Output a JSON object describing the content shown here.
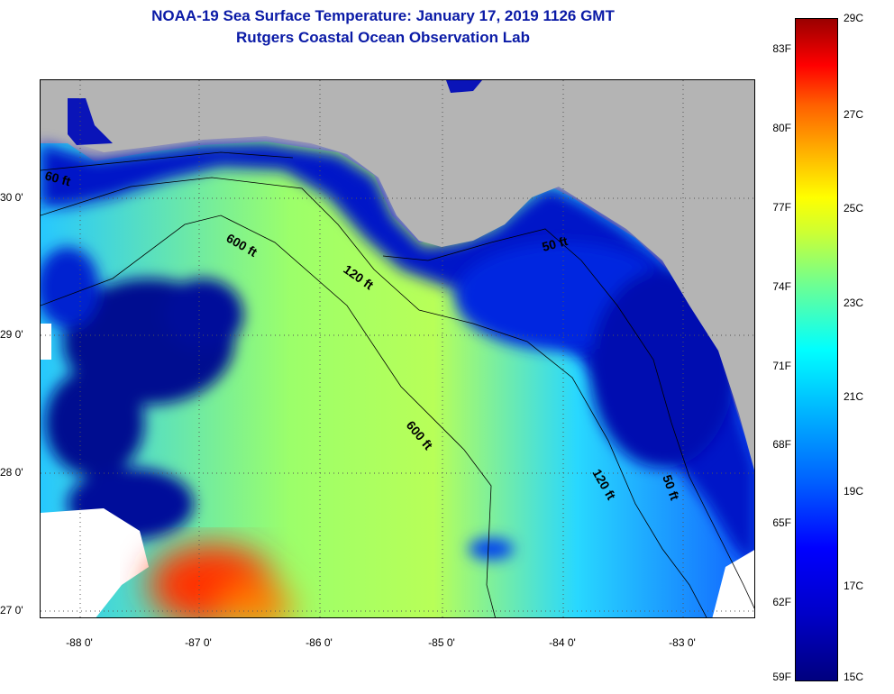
{
  "header": {
    "title_line1": "NOAA-19 Sea Surface Temperature:  January 17, 2019 1126 GMT",
    "title_line2": "Rutgers Coastal Ocean Observation Lab"
  },
  "axes": {
    "latitude_labels": [
      "30 0'",
      "29 0'",
      "28 0'",
      "27 0'"
    ],
    "longitude_labels": [
      "-88 0'",
      "-87 0'",
      "-86 0'",
      "-85 0'",
      "-84 0'",
      "-83 0'"
    ]
  },
  "isobaths": {
    "label_600": "600 ft",
    "label_120": "120 ft",
    "label_60": "60 ft",
    "label_50": "50 ft"
  },
  "colorbar": {
    "fahrenheit_labels": [
      "83F",
      "80F",
      "77F",
      "74F",
      "71F",
      "68F",
      "65F",
      "62F",
      "59F"
    ],
    "celsius_labels": [
      "29C",
      "27C",
      "25C",
      "23C",
      "21C",
      "19C",
      "17C",
      "15C"
    ]
  },
  "colors": {
    "title": "#0a1aa6",
    "land": "#b4b4b4",
    "cold": "#00007f",
    "warm": "#9a0000"
  }
}
